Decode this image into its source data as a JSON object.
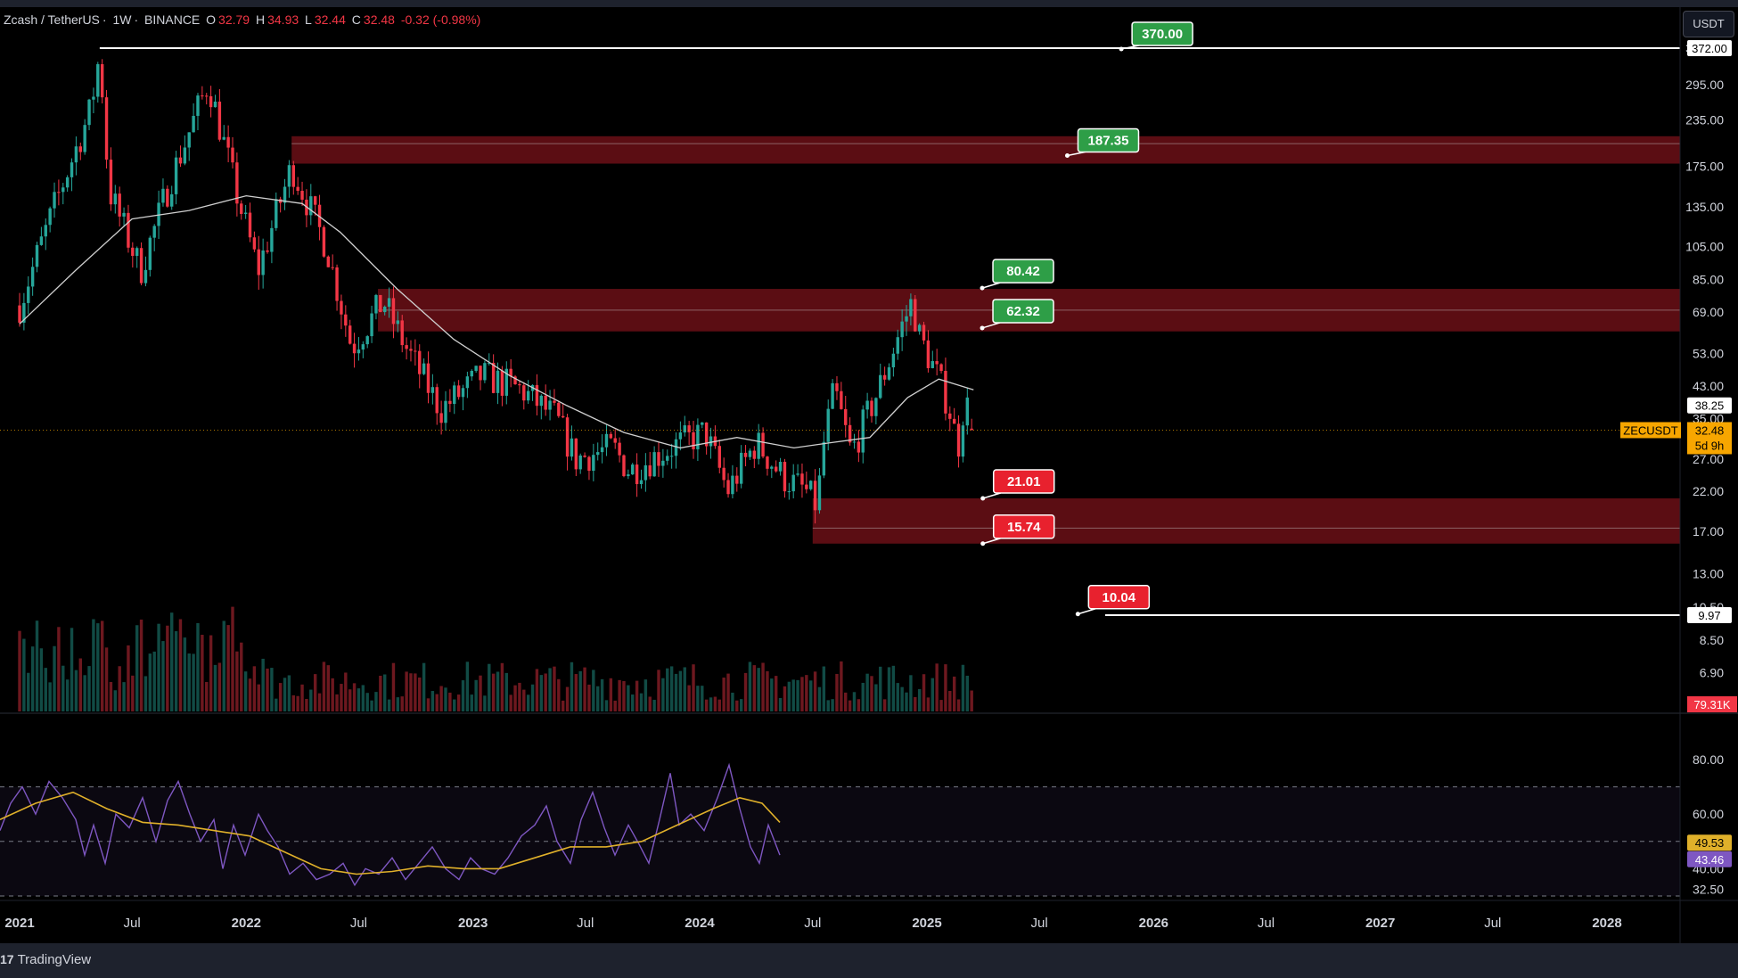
{
  "header": {
    "symbol": "Zcash / TetherUS",
    "interval": "1W",
    "exchange": "BINANCE",
    "o_label": "O",
    "o_value": "32.79",
    "h_label": "H",
    "h_value": "34.93",
    "l_label": "L",
    "l_value": "32.44",
    "c_label": "C",
    "c_value": "32.48",
    "change": "-0.32 (-0.98%)"
  },
  "currency_button": "USDT",
  "footer": {
    "brand": "TradingView"
  },
  "colors": {
    "bull": "#26a69a",
    "bear": "#f23645",
    "zone": "#6b0f16",
    "ma": "#cfcfcf",
    "rsi": "#7e57c2",
    "rsi_ma": "#e0b02a",
    "green_label": "#2e9e47",
    "red_label": "#e8212e"
  },
  "chart_data": [
    {
      "type": "candlestick",
      "symbol": "ZECUSDT",
      "interval": "1W",
      "scale": "log",
      "ylim": [
        6.0,
        460.0
      ],
      "y_ticks": [
        "372.00",
        "295.00",
        "235.00",
        "175.00",
        "135.00",
        "105.00",
        "85.00",
        "69.00",
        "53.00",
        "43.00",
        "27.00",
        "22.00",
        "17.00",
        "13.00",
        "10.50",
        "8.50",
        "6.90"
      ],
      "x_ticks": [
        "2021",
        "Jul",
        "2022",
        "Jul",
        "2023",
        "Jul",
        "2024",
        "Jul",
        "2025",
        "Jul",
        "2026",
        "Jul",
        "2027",
        "Jul",
        "2028"
      ],
      "price_path": [
        [
          "2021-01-01",
          72
        ],
        [
          "2021-03-01",
          140
        ],
        [
          "2021-04-25",
          250
        ],
        [
          "2021-05-10",
          360
        ],
        [
          "2021-05-25",
          150
        ],
        [
          "2021-07-15",
          90
        ],
        [
          "2021-09-01",
          160
        ],
        [
          "2021-11-01",
          300
        ],
        [
          "2021-12-15",
          150
        ],
        [
          "2022-01-20",
          90
        ],
        [
          "2022-03-15",
          175
        ],
        [
          "2022-05-10",
          105
        ],
        [
          "2022-06-20",
          55
        ],
        [
          "2022-08-10",
          74
        ],
        [
          "2022-09-15",
          55
        ],
        [
          "2022-11-10",
          37
        ],
        [
          "2023-01-15",
          46
        ],
        [
          "2023-03-20",
          42
        ],
        [
          "2023-05-15",
          35
        ],
        [
          "2023-06-15",
          27
        ],
        [
          "2023-08-15",
          29
        ],
        [
          "2023-09-10",
          25
        ],
        [
          "2023-11-15",
          29
        ],
        [
          "2024-01-10",
          32
        ],
        [
          "2024-02-15",
          22
        ],
        [
          "2024-04-01",
          30
        ],
        [
          "2024-05-15",
          24
        ],
        [
          "2024-06-20",
          22
        ],
        [
          "2024-07-08",
          20
        ],
        [
          "2024-07-20",
          31
        ],
        [
          "2024-08-05",
          42
        ],
        [
          "2024-09-01",
          28
        ],
        [
          "2024-10-15",
          42
        ],
        [
          "2024-11-20",
          62
        ],
        [
          "2024-12-08",
          74
        ],
        [
          "2024-12-20",
          59
        ],
        [
          "2025-01-15",
          47
        ],
        [
          "2025-02-05",
          38
        ],
        [
          "2025-02-20",
          29
        ],
        [
          "2025-03-03",
          40
        ],
        [
          "2025-03-17",
          32.48
        ]
      ],
      "moving_average": [
        [
          "2021-01-01",
          64
        ],
        [
          "2021-04-01",
          90
        ],
        [
          "2021-07-01",
          125
        ],
        [
          "2021-10-01",
          132
        ],
        [
          "2022-01-01",
          145
        ],
        [
          "2022-04-01",
          138
        ],
        [
          "2022-06-01",
          115
        ],
        [
          "2022-09-01",
          80
        ],
        [
          "2022-12-01",
          58
        ],
        [
          "2023-03-01",
          46
        ],
        [
          "2023-06-01",
          38
        ],
        [
          "2023-09-01",
          32
        ],
        [
          "2023-12-01",
          29
        ],
        [
          "2024-03-01",
          31
        ],
        [
          "2024-06-01",
          29
        ],
        [
          "2024-08-01",
          30
        ],
        [
          "2024-10-01",
          31
        ],
        [
          "2024-12-01",
          40
        ],
        [
          "2025-01-20",
          45
        ],
        [
          "2025-03-17",
          42
        ]
      ],
      "levels": [
        {
          "label": "370.00",
          "price": 370.0,
          "kind": "resistance"
        },
        {
          "label": "187.35",
          "price": 187.35,
          "kind": "resistance"
        },
        {
          "label": "80.42",
          "price": 80.42,
          "kind": "resistance"
        },
        {
          "label": "62.32",
          "price": 62.32,
          "kind": "resistance"
        },
        {
          "label": "21.01",
          "price": 21.01,
          "kind": "support"
        },
        {
          "label": "15.74",
          "price": 15.74,
          "kind": "support"
        },
        {
          "label": "10.04",
          "price": 10.04,
          "kind": "support"
        }
      ],
      "horizontal_lines": [
        {
          "price": 372.0,
          "tag": "372.00",
          "start": "2021-05-10"
        },
        {
          "price": 9.97,
          "tag": "9.97",
          "start": "2025-10-15"
        }
      ],
      "zones": [
        {
          "from": 178.0,
          "to": 212.0,
          "start": "2022-03-15"
        },
        {
          "from": 61.0,
          "to": 80.0,
          "start": "2022-08-01"
        },
        {
          "from": 15.74,
          "to": 21.01,
          "start": "2024-07-01"
        }
      ],
      "current_price": {
        "symbol": "ZECUSDT",
        "price": "32.48",
        "countdown": "5d 9h"
      },
      "ma_tag": "38.25",
      "hidden_tag": "35.00",
      "volume_tag": "79.31K"
    },
    {
      "type": "line",
      "indicator": "RSI",
      "ylim": [
        30,
        85
      ],
      "y_ticks": [
        "80.00",
        "60.00",
        "40.00",
        "32.50"
      ],
      "bands": [
        70,
        50,
        30
      ],
      "rsi_points": [
        [
          0,
          54
        ],
        [
          12,
          64
        ],
        [
          25,
          70
        ],
        [
          40,
          60
        ],
        [
          55,
          72
        ],
        [
          70,
          66
        ],
        [
          85,
          58
        ],
        [
          95,
          45
        ],
        [
          105,
          56
        ],
        [
          118,
          42
        ],
        [
          130,
          60
        ],
        [
          145,
          55
        ],
        [
          160,
          66
        ],
        [
          175,
          50
        ],
        [
          188,
          65
        ],
        [
          200,
          72
        ],
        [
          213,
          60
        ],
        [
          225,
          50
        ],
        [
          240,
          58
        ],
        [
          250,
          40
        ],
        [
          262,
          56
        ],
        [
          275,
          45
        ],
        [
          290,
          60
        ],
        [
          300,
          54
        ],
        [
          312,
          48
        ],
        [
          325,
          38
        ],
        [
          340,
          42
        ],
        [
          355,
          36
        ],
        [
          370,
          38
        ],
        [
          385,
          42
        ],
        [
          398,
          34
        ],
        [
          410,
          40
        ],
        [
          425,
          38
        ],
        [
          440,
          44
        ],
        [
          455,
          36
        ],
        [
          470,
          42
        ],
        [
          485,
          48
        ],
        [
          500,
          40
        ],
        [
          515,
          36
        ],
        [
          528,
          44
        ],
        [
          540,
          40
        ],
        [
          555,
          38
        ],
        [
          570,
          44
        ],
        [
          585,
          52
        ],
        [
          600,
          56
        ],
        [
          613,
          63
        ],
        [
          625,
          50
        ],
        [
          640,
          42
        ],
        [
          652,
          58
        ],
        [
          665,
          68
        ],
        [
          678,
          55
        ],
        [
          690,
          45
        ],
        [
          705,
          56
        ],
        [
          717,
          49
        ],
        [
          728,
          42
        ],
        [
          740,
          58
        ],
        [
          752,
          75
        ],
        [
          762,
          56
        ],
        [
          775,
          60
        ],
        [
          790,
          54
        ],
        [
          805,
          66
        ],
        [
          818,
          78
        ],
        [
          830,
          62
        ],
        [
          842,
          48
        ],
        [
          852,
          42
        ],
        [
          862,
          56
        ],
        [
          875,
          45
        ]
      ],
      "rsi_ma_points": [
        [
          0,
          58
        ],
        [
          40,
          64
        ],
        [
          82,
          68
        ],
        [
          120,
          62
        ],
        [
          160,
          57
        ],
        [
          200,
          56
        ],
        [
          240,
          54
        ],
        [
          280,
          52
        ],
        [
          320,
          46
        ],
        [
          360,
          40
        ],
        [
          400,
          38
        ],
        [
          440,
          39
        ],
        [
          480,
          41
        ],
        [
          520,
          40
        ],
        [
          560,
          40
        ],
        [
          600,
          44
        ],
        [
          640,
          48
        ],
        [
          680,
          48
        ],
        [
          720,
          50
        ],
        [
          760,
          56
        ],
        [
          800,
          62
        ],
        [
          830,
          66
        ],
        [
          855,
          64
        ],
        [
          875,
          57
        ]
      ],
      "tags": [
        {
          "label": "49.53",
          "kind": "ma"
        },
        {
          "label": "43.46",
          "kind": "rsi"
        }
      ]
    }
  ]
}
